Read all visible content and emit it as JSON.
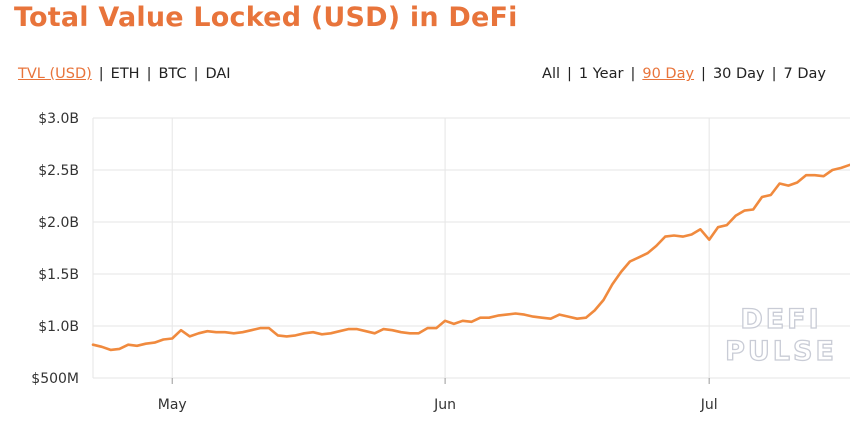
{
  "title": "Total Value Locked (USD) in DeFi",
  "unit_options": [
    {
      "label": "TVL (USD)",
      "active": true
    },
    {
      "label": "ETH",
      "active": false
    },
    {
      "label": "BTC",
      "active": false
    },
    {
      "label": "DAI",
      "active": false
    }
  ],
  "range_options": [
    {
      "label": "All",
      "active": false
    },
    {
      "label": "1 Year",
      "active": false
    },
    {
      "label": "90 Day",
      "active": true
    },
    {
      "label": "30 Day",
      "active": false
    },
    {
      "label": "7 Day",
      "active": false
    }
  ],
  "separator": "|",
  "watermark": {
    "line1": "DEFI",
    "line2": "PULSE"
  },
  "colors": {
    "accent": "#e8743b",
    "line": "#f08a3e",
    "grid": "#e6e6e6",
    "watermark_stroke": "#c9ccd6"
  },
  "chart_data": {
    "type": "line",
    "title": "Total Value Locked (USD) in DeFi",
    "xlabel": "",
    "ylabel": "",
    "y_ticks": [
      {
        "value": 0.5,
        "label": "$500M"
      },
      {
        "value": 1.0,
        "label": "$1.0B"
      },
      {
        "value": 1.5,
        "label": "$1.5B"
      },
      {
        "value": 2.0,
        "label": "$2.0B"
      },
      {
        "value": 2.5,
        "label": "$2.5B"
      },
      {
        "value": 3.0,
        "label": "$3.0B"
      }
    ],
    "x_ticks": [
      {
        "value": "2020-05-01",
        "label": "May"
      },
      {
        "value": "2020-06-01",
        "label": "Jun"
      },
      {
        "value": "2020-07-01",
        "label": "Jul"
      }
    ],
    "xlim": [
      "2020-04-22",
      "2020-07-17"
    ],
    "ylim": [
      0.5,
      3.0
    ],
    "grid": true,
    "series": [
      {
        "unit": "USD billions",
        "points": [
          [
            "2020-04-22",
            0.82
          ],
          [
            "2020-04-23",
            0.8
          ],
          [
            "2020-04-24",
            0.77
          ],
          [
            "2020-04-25",
            0.78
          ],
          [
            "2020-04-26",
            0.82
          ],
          [
            "2020-04-27",
            0.81
          ],
          [
            "2020-04-28",
            0.83
          ],
          [
            "2020-04-29",
            0.84
          ],
          [
            "2020-04-30",
            0.87
          ],
          [
            "2020-05-01",
            0.88
          ],
          [
            "2020-05-02",
            0.96
          ],
          [
            "2020-05-03",
            0.9
          ],
          [
            "2020-05-04",
            0.93
          ],
          [
            "2020-05-05",
            0.95
          ],
          [
            "2020-05-06",
            0.94
          ],
          [
            "2020-05-07",
            0.94
          ],
          [
            "2020-05-08",
            0.93
          ],
          [
            "2020-05-09",
            0.94
          ],
          [
            "2020-05-10",
            0.96
          ],
          [
            "2020-05-11",
            0.98
          ],
          [
            "2020-05-12",
            0.98
          ],
          [
            "2020-05-13",
            0.91
          ],
          [
            "2020-05-14",
            0.9
          ],
          [
            "2020-05-15",
            0.91
          ],
          [
            "2020-05-16",
            0.93
          ],
          [
            "2020-05-17",
            0.94
          ],
          [
            "2020-05-18",
            0.92
          ],
          [
            "2020-05-19",
            0.93
          ],
          [
            "2020-05-20",
            0.95
          ],
          [
            "2020-05-21",
            0.97
          ],
          [
            "2020-05-22",
            0.97
          ],
          [
            "2020-05-23",
            0.95
          ],
          [
            "2020-05-24",
            0.93
          ],
          [
            "2020-05-25",
            0.97
          ],
          [
            "2020-05-26",
            0.96
          ],
          [
            "2020-05-27",
            0.94
          ],
          [
            "2020-05-28",
            0.93
          ],
          [
            "2020-05-29",
            0.93
          ],
          [
            "2020-05-30",
            0.98
          ],
          [
            "2020-05-31",
            0.98
          ],
          [
            "2020-06-01",
            1.05
          ],
          [
            "2020-06-02",
            1.02
          ],
          [
            "2020-06-03",
            1.05
          ],
          [
            "2020-06-04",
            1.04
          ],
          [
            "2020-06-05",
            1.08
          ],
          [
            "2020-06-06",
            1.08
          ],
          [
            "2020-06-07",
            1.1
          ],
          [
            "2020-06-08",
            1.11
          ],
          [
            "2020-06-09",
            1.12
          ],
          [
            "2020-06-10",
            1.11
          ],
          [
            "2020-06-11",
            1.09
          ],
          [
            "2020-06-12",
            1.08
          ],
          [
            "2020-06-13",
            1.07
          ],
          [
            "2020-06-14",
            1.11
          ],
          [
            "2020-06-15",
            1.09
          ],
          [
            "2020-06-16",
            1.07
          ],
          [
            "2020-06-17",
            1.08
          ],
          [
            "2020-06-18",
            1.15
          ],
          [
            "2020-06-19",
            1.25
          ],
          [
            "2020-06-20",
            1.4
          ],
          [
            "2020-06-21",
            1.52
          ],
          [
            "2020-06-22",
            1.62
          ],
          [
            "2020-06-23",
            1.66
          ],
          [
            "2020-06-24",
            1.7
          ],
          [
            "2020-06-25",
            1.77
          ],
          [
            "2020-06-26",
            1.86
          ],
          [
            "2020-06-27",
            1.87
          ],
          [
            "2020-06-28",
            1.86
          ],
          [
            "2020-06-29",
            1.88
          ],
          [
            "2020-06-30",
            1.93
          ],
          [
            "2020-07-01",
            1.83
          ],
          [
            "2020-07-02",
            1.95
          ],
          [
            "2020-07-03",
            1.97
          ],
          [
            "2020-07-04",
            2.06
          ],
          [
            "2020-07-05",
            2.11
          ],
          [
            "2020-07-06",
            2.12
          ],
          [
            "2020-07-07",
            2.24
          ],
          [
            "2020-07-08",
            2.26
          ],
          [
            "2020-07-09",
            2.37
          ],
          [
            "2020-07-10",
            2.35
          ],
          [
            "2020-07-11",
            2.38
          ],
          [
            "2020-07-12",
            2.45
          ],
          [
            "2020-07-13",
            2.45
          ],
          [
            "2020-07-14",
            2.44
          ],
          [
            "2020-07-15",
            2.5
          ],
          [
            "2020-07-16",
            2.52
          ],
          [
            "2020-07-17",
            2.55
          ]
        ]
      }
    ]
  }
}
